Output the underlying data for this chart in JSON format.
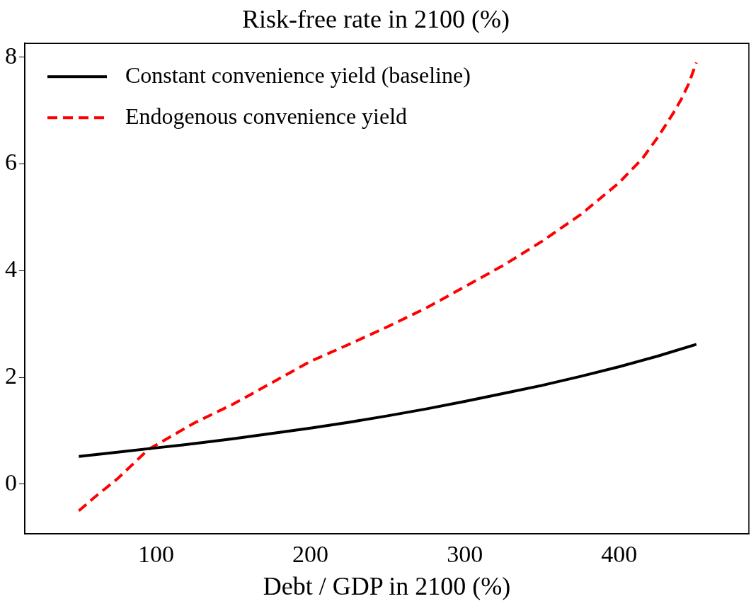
{
  "chart_data": {
    "type": "line",
    "title": "Risk-free rate in 2100 (%)",
    "xlabel": "Debt / GDP in 2100 (%)",
    "xlim": [
      15,
      484
    ],
    "xticks": [
      100,
      200,
      300,
      400
    ],
    "ylim": [
      -0.93,
      8.26
    ],
    "yticks": [
      0,
      2,
      4,
      6,
      8
    ],
    "grid": false,
    "legend": "top left",
    "marker": "none",
    "series": [
      {
        "name": "Constant convenience yield (baseline)",
        "color": "#000000",
        "line_style": "solid",
        "x": [
          50,
          75,
          100,
          125,
          150,
          175,
          200,
          225,
          250,
          275,
          300,
          325,
          350,
          375,
          400,
          425,
          450
        ],
        "values": [
          0.52,
          0.6,
          0.68,
          0.76,
          0.85,
          0.95,
          1.05,
          1.16,
          1.28,
          1.41,
          1.55,
          1.7,
          1.85,
          2.02,
          2.2,
          2.4,
          2.62
        ]
      },
      {
        "name": "Endogenous convenience yield",
        "color": "#ff0000",
        "line_style": "dashed",
        "x": [
          50,
          60,
          75,
          95,
          110,
          125,
          150,
          175,
          200,
          225,
          250,
          275,
          300,
          325,
          350,
          375,
          400,
          415,
          425,
          435,
          440,
          445,
          450
        ],
        "values": [
          -0.5,
          -0.25,
          0.1,
          0.65,
          0.9,
          1.15,
          1.5,
          1.9,
          2.3,
          2.62,
          2.95,
          3.3,
          3.7,
          4.1,
          4.55,
          5.05,
          5.65,
          6.1,
          6.5,
          6.95,
          7.2,
          7.5,
          7.9
        ]
      }
    ]
  }
}
